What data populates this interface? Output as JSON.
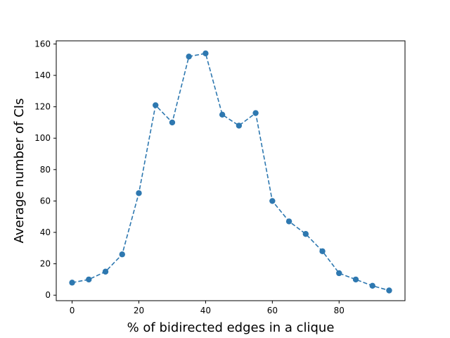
{
  "chart_data": {
    "type": "line",
    "title": "",
    "xlabel": "% of bidirected edges in a clique",
    "ylabel": "Average number of CIs",
    "xlim": [
      -4.75,
      99.75
    ],
    "ylim": [
      -3.5,
      162
    ],
    "xticks": [
      0,
      20,
      40,
      60,
      80
    ],
    "yticks": [
      0,
      20,
      40,
      60,
      80,
      100,
      120,
      140,
      160
    ],
    "grid": false,
    "legend": "none",
    "series": [
      {
        "line_style": "dashed",
        "marker": "circle",
        "color": "#2e78b0",
        "x": [
          0,
          5,
          10,
          15,
          20,
          25,
          30,
          35,
          40,
          45,
          50,
          55,
          60,
          65,
          70,
          75,
          80,
          85,
          90,
          95
        ],
        "y": [
          8,
          10,
          15,
          26,
          65,
          121,
          110,
          152,
          154,
          115,
          108,
          116,
          60,
          47,
          39,
          28,
          14,
          10,
          6,
          3
        ]
      }
    ]
  }
}
